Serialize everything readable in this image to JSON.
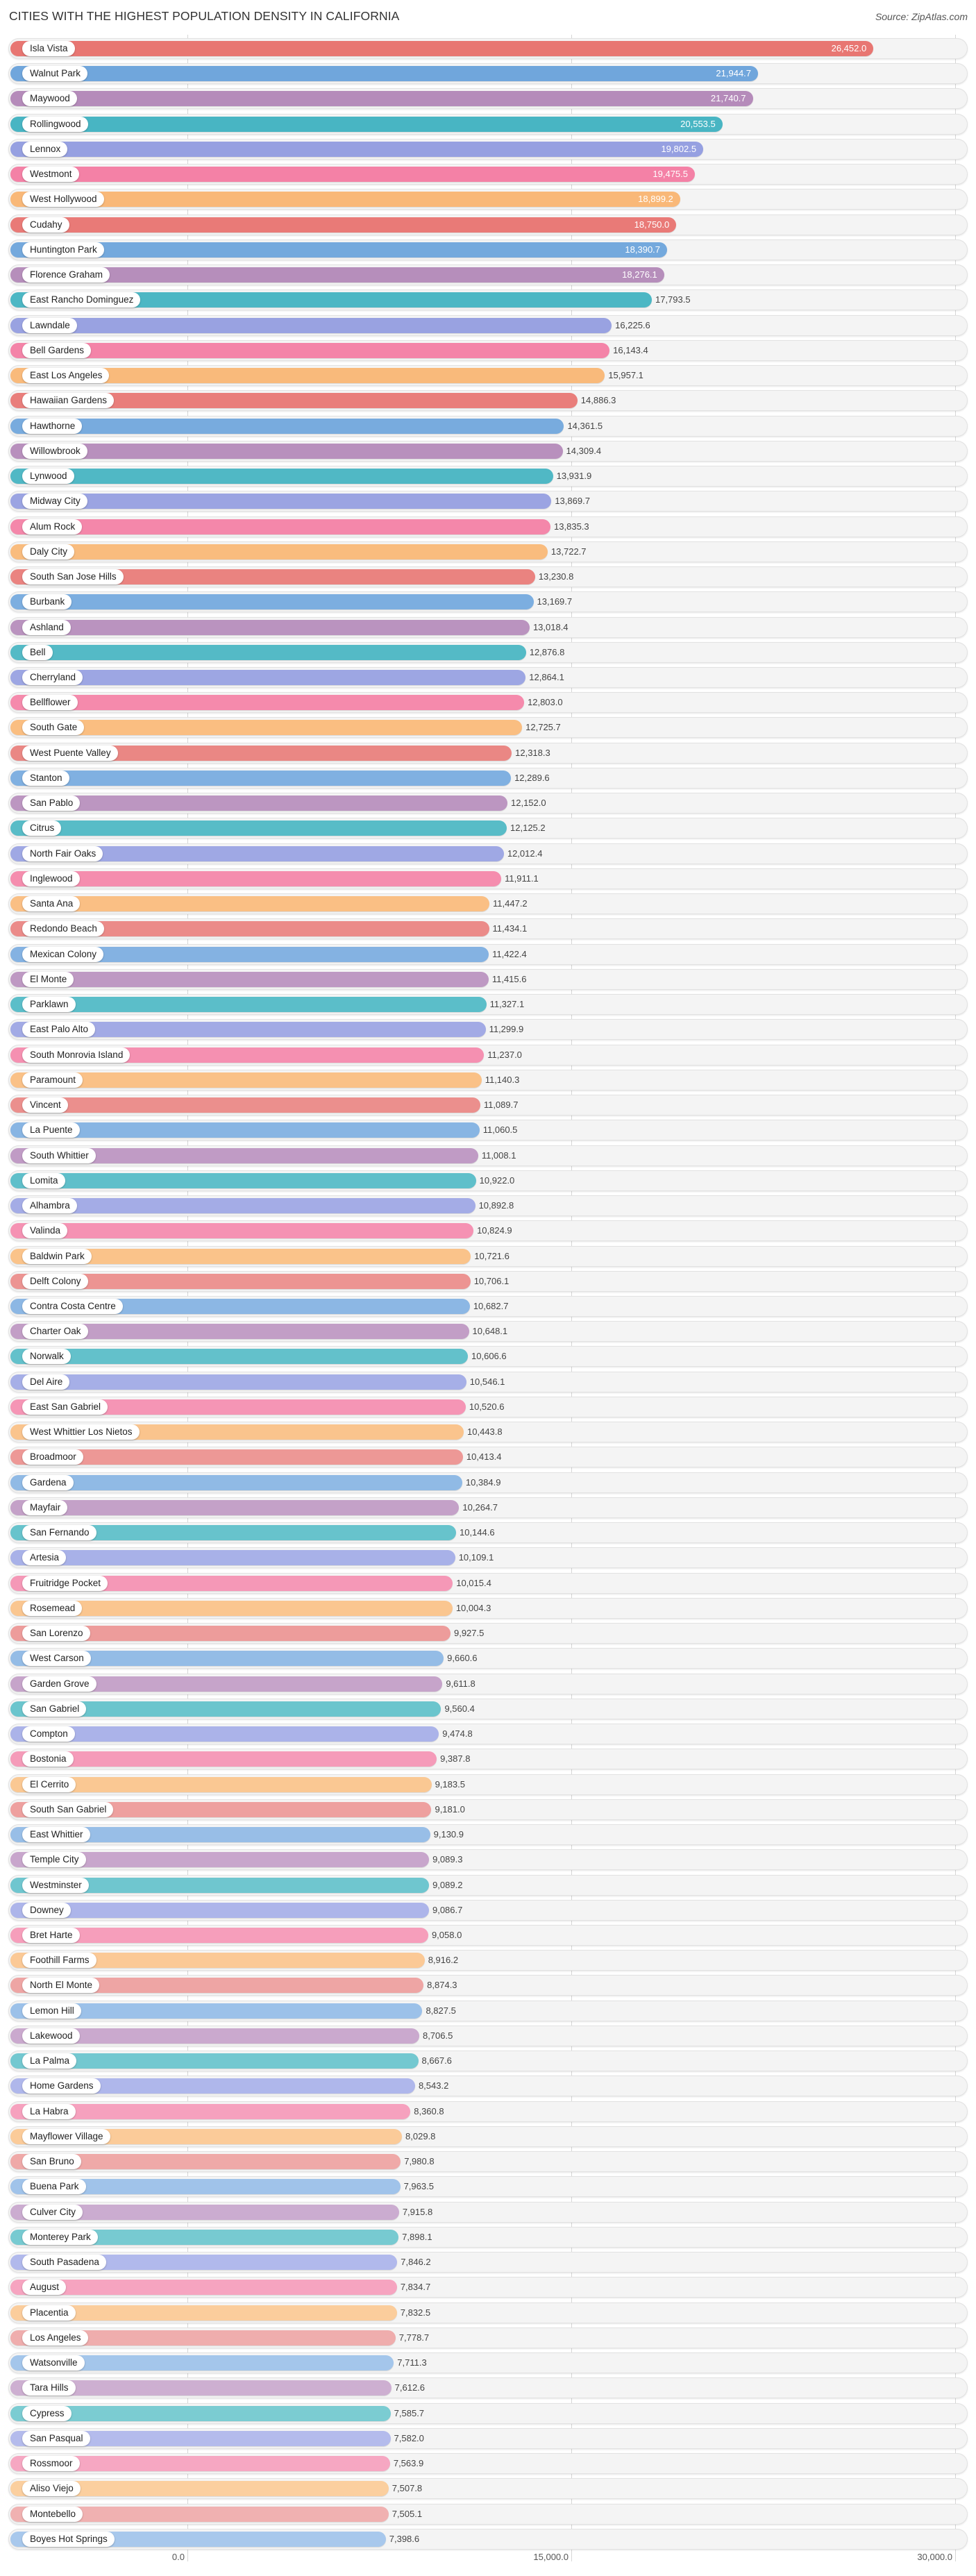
{
  "header": {
    "title": "CITIES WITH THE HIGHEST POPULATION DENSITY IN CALIFORNIA",
    "source": "Source: ZipAtlas.com"
  },
  "axis": {
    "ticks": [
      {
        "label": "0.0",
        "value": 0
      },
      {
        "label": "15,000.0",
        "value": 15000
      },
      {
        "label": "30,000.0",
        "value": 30000
      }
    ]
  },
  "palette": [
    "#e87672",
    "#6fa6dc",
    "#b48ab9",
    "#46b4c2",
    "#959fe0",
    "#f47fa4",
    "#f9b775"
  ],
  "palette_light": [
    "#f0b2b2",
    "#a8c8ec",
    "#cfb1d3",
    "#7ecdd3",
    "#b5bced",
    "#f6a8c3",
    "#fbcfa0"
  ],
  "chart_data": {
    "type": "bar",
    "orientation": "horizontal",
    "title": "CITIES WITH THE HIGHEST POPULATION DENSITY IN CALIFORNIA",
    "xlabel": "",
    "ylabel": "",
    "xlim": [
      0,
      30000
    ],
    "grid": true,
    "legend": "none",
    "categories": [
      "Isla Vista",
      "Walnut Park",
      "Maywood",
      "Rollingwood",
      "Lennox",
      "Westmont",
      "West Hollywood",
      "Cudahy",
      "Huntington Park",
      "Florence Graham",
      "East Rancho Dominguez",
      "Lawndale",
      "Bell Gardens",
      "East Los Angeles",
      "Hawaiian Gardens",
      "Hawthorne",
      "Willowbrook",
      "Lynwood",
      "Midway City",
      "Alum Rock",
      "Daly City",
      "South San Jose Hills",
      "Burbank",
      "Ashland",
      "Bell",
      "Cherryland",
      "Bellflower",
      "South Gate",
      "West Puente Valley",
      "Stanton",
      "San Pablo",
      "Citrus",
      "North Fair Oaks",
      "Inglewood",
      "Santa Ana",
      "Redondo Beach",
      "Mexican Colony",
      "El Monte",
      "Parklawn",
      "East Palo Alto",
      "South Monrovia Island",
      "Paramount",
      "Vincent",
      "La Puente",
      "South Whittier",
      "Lomita",
      "Alhambra",
      "Valinda",
      "Baldwin Park",
      "Delft Colony",
      "Contra Costa Centre",
      "Charter Oak",
      "Norwalk",
      "Del Aire",
      "East San Gabriel",
      "West Whittier Los Nietos",
      "Broadmoor",
      "Gardena",
      "Mayfair",
      "San Fernando",
      "Artesia",
      "Fruitridge Pocket",
      "Rosemead",
      "San Lorenzo",
      "West Carson",
      "Garden Grove",
      "San Gabriel",
      "Compton",
      "Bostonia",
      "El Cerrito",
      "South San Gabriel",
      "East Whittier",
      "Temple City",
      "Westminster",
      "Downey",
      "Bret Harte",
      "Foothill Farms",
      "North El Monte",
      "Lemon Hill",
      "Lakewood",
      "La Palma",
      "Home Gardens",
      "La Habra",
      "Mayflower Village",
      "San Bruno",
      "Buena Park",
      "Culver City",
      "Monterey Park",
      "South Pasadena",
      "August",
      "Placentia",
      "Los Angeles",
      "Watsonville",
      "Tara Hills",
      "Cypress",
      "San Pasqual",
      "Rossmoor",
      "Aliso Viejo",
      "Montebello",
      "Boyes Hot Springs"
    ],
    "values": [
      26452.0,
      21944.7,
      21740.7,
      20553.5,
      19802.5,
      19475.5,
      18899.2,
      18750.0,
      18390.7,
      18276.1,
      17793.5,
      16225.6,
      16143.4,
      15957.1,
      14886.3,
      14361.5,
      14309.4,
      13931.9,
      13869.7,
      13835.3,
      13722.7,
      13230.8,
      13169.7,
      13018.4,
      12876.8,
      12864.1,
      12803.0,
      12725.7,
      12318.3,
      12289.6,
      12152.0,
      12125.2,
      12012.4,
      11911.1,
      11447.2,
      11434.1,
      11422.4,
      11415.6,
      11327.1,
      11299.9,
      11237.0,
      11140.3,
      11089.7,
      11060.5,
      11008.1,
      10922.0,
      10892.8,
      10824.9,
      10721.6,
      10706.1,
      10682.7,
      10648.1,
      10606.6,
      10546.1,
      10520.6,
      10443.8,
      10413.4,
      10384.9,
      10264.7,
      10144.6,
      10109.1,
      10015.4,
      10004.3,
      9927.5,
      9660.6,
      9611.8,
      9560.4,
      9474.8,
      9387.8,
      9183.5,
      9181.0,
      9130.9,
      9089.3,
      9089.2,
      9086.7,
      9058.0,
      8916.2,
      8874.3,
      8827.5,
      8706.5,
      8667.6,
      8543.2,
      8360.8,
      8029.8,
      7980.8,
      7963.5,
      7915.8,
      7898.1,
      7846.2,
      7834.7,
      7832.5,
      7778.7,
      7711.3,
      7612.6,
      7585.7,
      7582.0,
      7563.9,
      7507.8,
      7505.1,
      7398.6
    ],
    "value_labels": [
      "26,452.0",
      "21,944.7",
      "21,740.7",
      "20,553.5",
      "19,802.5",
      "19,475.5",
      "18,899.2",
      "18,750.0",
      "18,390.7",
      "18,276.1",
      "17,793.5",
      "16,225.6",
      "16,143.4",
      "15,957.1",
      "14,886.3",
      "14,361.5",
      "14,309.4",
      "13,931.9",
      "13,869.7",
      "13,835.3",
      "13,722.7",
      "13,230.8",
      "13,169.7",
      "13,018.4",
      "12,876.8",
      "12,864.1",
      "12,803.0",
      "12,725.7",
      "12,318.3",
      "12,289.6",
      "12,152.0",
      "12,125.2",
      "12,012.4",
      "11,911.1",
      "11,447.2",
      "11,434.1",
      "11,422.4",
      "11,415.6",
      "11,327.1",
      "11,299.9",
      "11,237.0",
      "11,140.3",
      "11,089.7",
      "11,060.5",
      "11,008.1",
      "10,922.0",
      "10,892.8",
      "10,824.9",
      "10,721.6",
      "10,706.1",
      "10,682.7",
      "10,648.1",
      "10,606.6",
      "10,546.1",
      "10,520.6",
      "10,443.8",
      "10,413.4",
      "10,384.9",
      "10,264.7",
      "10,144.6",
      "10,109.1",
      "10,015.4",
      "10,004.3",
      "9,927.5",
      "9,660.6",
      "9,611.8",
      "9,560.4",
      "9,474.8",
      "9,387.8",
      "9,183.5",
      "9,181.0",
      "9,130.9",
      "9,089.3",
      "9,089.2",
      "9,086.7",
      "9,058.0",
      "8,916.2",
      "8,874.3",
      "8,827.5",
      "8,706.5",
      "8,667.6",
      "8,543.2",
      "8,360.8",
      "8,029.8",
      "7,980.8",
      "7,963.5",
      "7,915.8",
      "7,898.1",
      "7,846.2",
      "7,834.7",
      "7,832.5",
      "7,778.7",
      "7,711.3",
      "7,612.6",
      "7,585.7",
      "7,582.0",
      "7,563.9",
      "7,507.8",
      "7,505.1",
      "7,398.6"
    ],
    "inside_label_count": 10
  }
}
